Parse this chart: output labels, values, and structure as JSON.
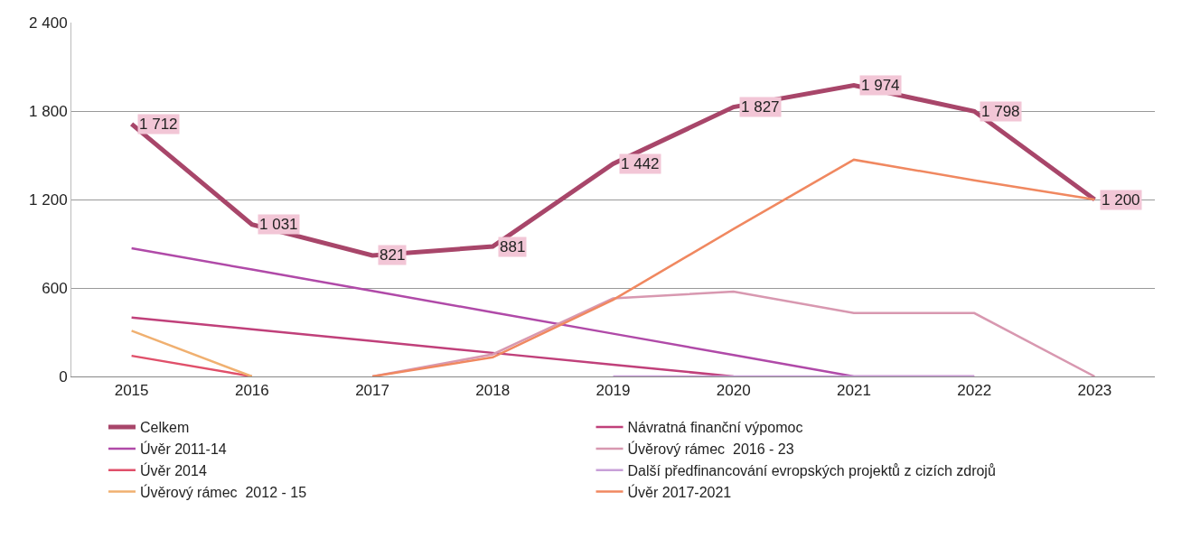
{
  "chart_data": {
    "type": "line",
    "categories": [
      "2015",
      "2016",
      "2017",
      "2018",
      "2019",
      "2020",
      "2021",
      "2022",
      "2023"
    ],
    "ylim": [
      0,
      2400
    ],
    "yticks": [
      0,
      600,
      {
        "value": 1200,
        "label": "1 200"
      },
      {
        "value": 1800,
        "label": "1 800"
      },
      {
        "value": 2400,
        "label": "2 400"
      }
    ],
    "grid": "y",
    "legend": "bottom",
    "marker": "none",
    "line_style": "solid",
    "series": [
      {
        "name": "Celkem",
        "color": "#a8466a",
        "values": [
          1712,
          1031,
          821,
          881,
          1442,
          1827,
          1974,
          1798,
          1200
        ],
        "value_labels": [
          "1 712",
          "1 031",
          "821",
          "881",
          "1 442",
          "1 827",
          "1 974",
          "1 798",
          "1 200"
        ]
      },
      {
        "name": "Úvěr 2011-14",
        "color": "#b04aa8",
        "values": [
          870,
          725,
          580,
          435,
          290,
          145,
          0,
          0,
          null
        ]
      },
      {
        "name": "Úvěr 2014",
        "color": "#e0506a",
        "values": [
          140,
          0,
          null,
          null,
          null,
          null,
          null,
          null,
          null
        ]
      },
      {
        "name": "Úvěrový rámec  2012 - 15",
        "color": "#f0b070",
        "values": [
          310,
          0,
          null,
          null,
          null,
          null,
          null,
          null,
          null
        ]
      },
      {
        "name": "Návratná finanční výpomoc",
        "color": "#c0407a",
        "values": [
          400,
          320,
          240,
          160,
          80,
          0,
          null,
          null,
          null
        ]
      },
      {
        "name": "Úvěrový rámec  2016 - 23",
        "color": "#d898b0",
        "values": [
          null,
          null,
          0,
          150,
          530,
          575,
          430,
          430,
          0
        ]
      },
      {
        "name": "Další předfinancování evropských projektů z cizích zdrojů",
        "color": "#c8a0d8",
        "values": [
          null,
          null,
          null,
          null,
          0,
          0,
          0,
          0,
          null
        ]
      },
      {
        "name": "Úvěr 2017-2021",
        "color": "#f08860",
        "values": [
          null,
          null,
          0,
          130,
          520,
          1000,
          1470,
          1330,
          1200
        ]
      }
    ]
  }
}
